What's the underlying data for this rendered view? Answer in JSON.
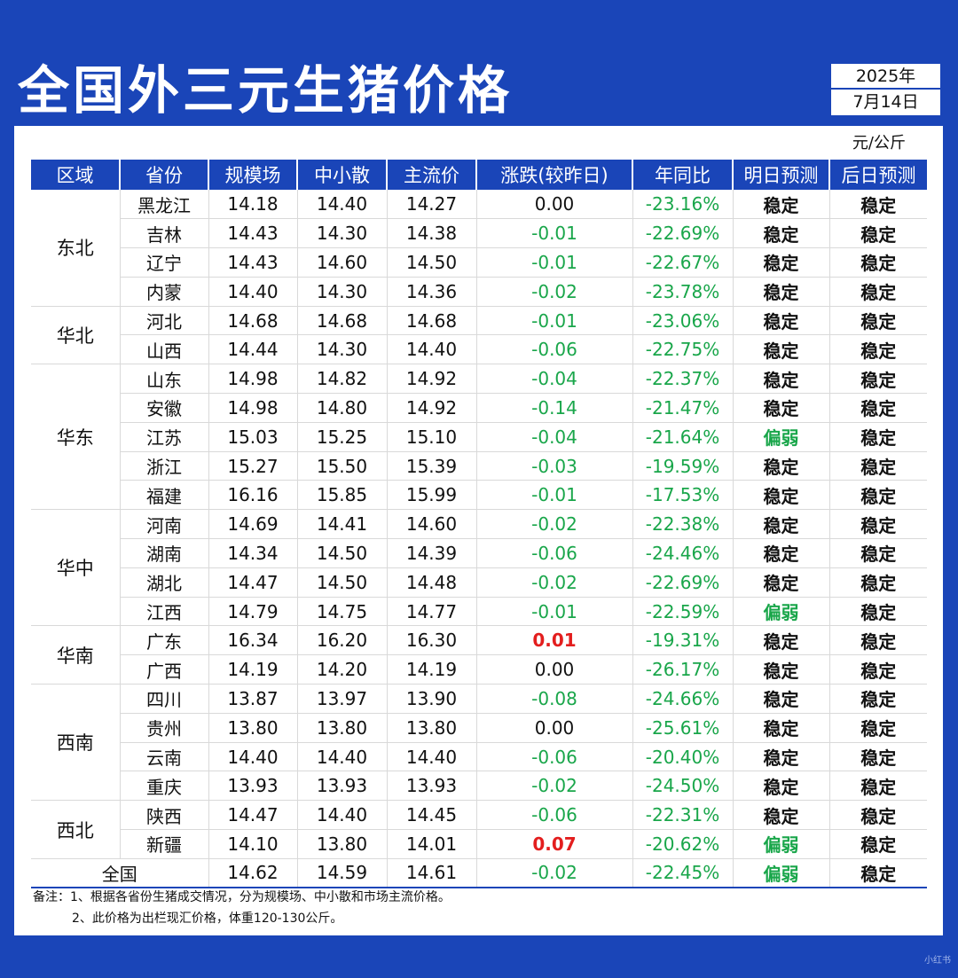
{
  "title": "全国外三元生猪价格",
  "date": {
    "year": "2025年",
    "day": "7月14日"
  },
  "unit": "元/公斤",
  "headers": [
    "区域",
    "省份",
    "规模场",
    "中小散",
    "主流价",
    "涨跌(较昨日)",
    "年同比",
    "明日预测",
    "后日预测"
  ],
  "regions": [
    {
      "name": "东北",
      "rows": [
        {
          "province": "黑龙江",
          "large": "14.18",
          "small": "14.40",
          "main": "14.27",
          "change": "0.00",
          "yoy": "-23.16%",
          "tomorrow": "稳定",
          "after": "稳定"
        },
        {
          "province": "吉林",
          "large": "14.43",
          "small": "14.30",
          "main": "14.38",
          "change": "-0.01",
          "yoy": "-22.69%",
          "tomorrow": "稳定",
          "after": "稳定"
        },
        {
          "province": "辽宁",
          "large": "14.43",
          "small": "14.60",
          "main": "14.50",
          "change": "-0.01",
          "yoy": "-22.67%",
          "tomorrow": "稳定",
          "after": "稳定"
        },
        {
          "province": "内蒙",
          "large": "14.40",
          "small": "14.30",
          "main": "14.36",
          "change": "-0.02",
          "yoy": "-23.78%",
          "tomorrow": "稳定",
          "after": "稳定"
        }
      ]
    },
    {
      "name": "华北",
      "rows": [
        {
          "province": "河北",
          "large": "14.68",
          "small": "14.68",
          "main": "14.68",
          "change": "-0.01",
          "yoy": "-23.06%",
          "tomorrow": "稳定",
          "after": "稳定"
        },
        {
          "province": "山西",
          "large": "14.44",
          "small": "14.30",
          "main": "14.40",
          "change": "-0.06",
          "yoy": "-22.75%",
          "tomorrow": "稳定",
          "after": "稳定"
        }
      ]
    },
    {
      "name": "华东",
      "rows": [
        {
          "province": "山东",
          "large": "14.98",
          "small": "14.82",
          "main": "14.92",
          "change": "-0.04",
          "yoy": "-22.37%",
          "tomorrow": "稳定",
          "after": "稳定"
        },
        {
          "province": "安徽",
          "large": "14.98",
          "small": "14.80",
          "main": "14.92",
          "change": "-0.14",
          "yoy": "-21.47%",
          "tomorrow": "稳定",
          "after": "稳定"
        },
        {
          "province": "江苏",
          "large": "15.03",
          "small": "15.25",
          "main": "15.10",
          "change": "-0.04",
          "yoy": "-21.64%",
          "tomorrow": "偏弱",
          "after": "稳定"
        },
        {
          "province": "浙江",
          "large": "15.27",
          "small": "15.50",
          "main": "15.39",
          "change": "-0.03",
          "yoy": "-19.59%",
          "tomorrow": "稳定",
          "after": "稳定"
        },
        {
          "province": "福建",
          "large": "16.16",
          "small": "15.85",
          "main": "15.99",
          "change": "-0.01",
          "yoy": "-17.53%",
          "tomorrow": "稳定",
          "after": "稳定"
        }
      ]
    },
    {
      "name": "华中",
      "rows": [
        {
          "province": "河南",
          "large": "14.69",
          "small": "14.41",
          "main": "14.60",
          "change": "-0.02",
          "yoy": "-22.38%",
          "tomorrow": "稳定",
          "after": "稳定"
        },
        {
          "province": "湖南",
          "large": "14.34",
          "small": "14.50",
          "main": "14.39",
          "change": "-0.06",
          "yoy": "-24.46%",
          "tomorrow": "稳定",
          "after": "稳定"
        },
        {
          "province": "湖北",
          "large": "14.47",
          "small": "14.50",
          "main": "14.48",
          "change": "-0.02",
          "yoy": "-22.69%",
          "tomorrow": "稳定",
          "after": "稳定"
        },
        {
          "province": "江西",
          "large": "14.79",
          "small": "14.75",
          "main": "14.77",
          "change": "-0.01",
          "yoy": "-22.59%",
          "tomorrow": "偏弱",
          "after": "稳定"
        }
      ]
    },
    {
      "name": "华南",
      "rows": [
        {
          "province": "广东",
          "large": "16.34",
          "small": "16.20",
          "main": "16.30",
          "change": "0.01",
          "yoy": "-19.31%",
          "tomorrow": "稳定",
          "after": "稳定"
        },
        {
          "province": "广西",
          "large": "14.19",
          "small": "14.20",
          "main": "14.19",
          "change": "0.00",
          "yoy": "-26.17%",
          "tomorrow": "稳定",
          "after": "稳定"
        }
      ]
    },
    {
      "name": "西南",
      "rows": [
        {
          "province": "四川",
          "large": "13.87",
          "small": "13.97",
          "main": "13.90",
          "change": "-0.08",
          "yoy": "-24.66%",
          "tomorrow": "稳定",
          "after": "稳定"
        },
        {
          "province": "贵州",
          "large": "13.80",
          "small": "13.80",
          "main": "13.80",
          "change": "0.00",
          "yoy": "-25.61%",
          "tomorrow": "稳定",
          "after": "稳定"
        },
        {
          "province": "云南",
          "large": "14.40",
          "small": "14.40",
          "main": "14.40",
          "change": "-0.06",
          "yoy": "-20.40%",
          "tomorrow": "稳定",
          "after": "稳定"
        },
        {
          "province": "重庆",
          "large": "13.93",
          "small": "13.93",
          "main": "13.93",
          "change": "-0.02",
          "yoy": "-24.50%",
          "tomorrow": "稳定",
          "after": "稳定"
        }
      ]
    },
    {
      "name": "西北",
      "rows": [
        {
          "province": "陕西",
          "large": "14.47",
          "small": "14.40",
          "main": "14.45",
          "change": "-0.06",
          "yoy": "-22.31%",
          "tomorrow": "稳定",
          "after": "稳定"
        },
        {
          "province": "新疆",
          "large": "14.10",
          "small": "13.80",
          "main": "14.01",
          "change": "0.07",
          "yoy": "-20.62%",
          "tomorrow": "偏弱",
          "after": "稳定"
        }
      ]
    }
  ],
  "national": {
    "label": "全国",
    "large": "14.62",
    "small": "14.59",
    "main": "14.61",
    "change": "-0.02",
    "yoy": "-22.45%",
    "tomorrow": "偏弱",
    "after": "稳定"
  },
  "notes": [
    "备注：1、根据各省份生猪成交情况，分为规模场、中小散和市场主流价格。",
    "2、此价格为出栏现汇价格，体重120-130公斤。"
  ],
  "watermark": "小红书",
  "colors": {
    "blue": "#1a45b8",
    "green": "#19a64a",
    "red": "#e31e1e"
  }
}
